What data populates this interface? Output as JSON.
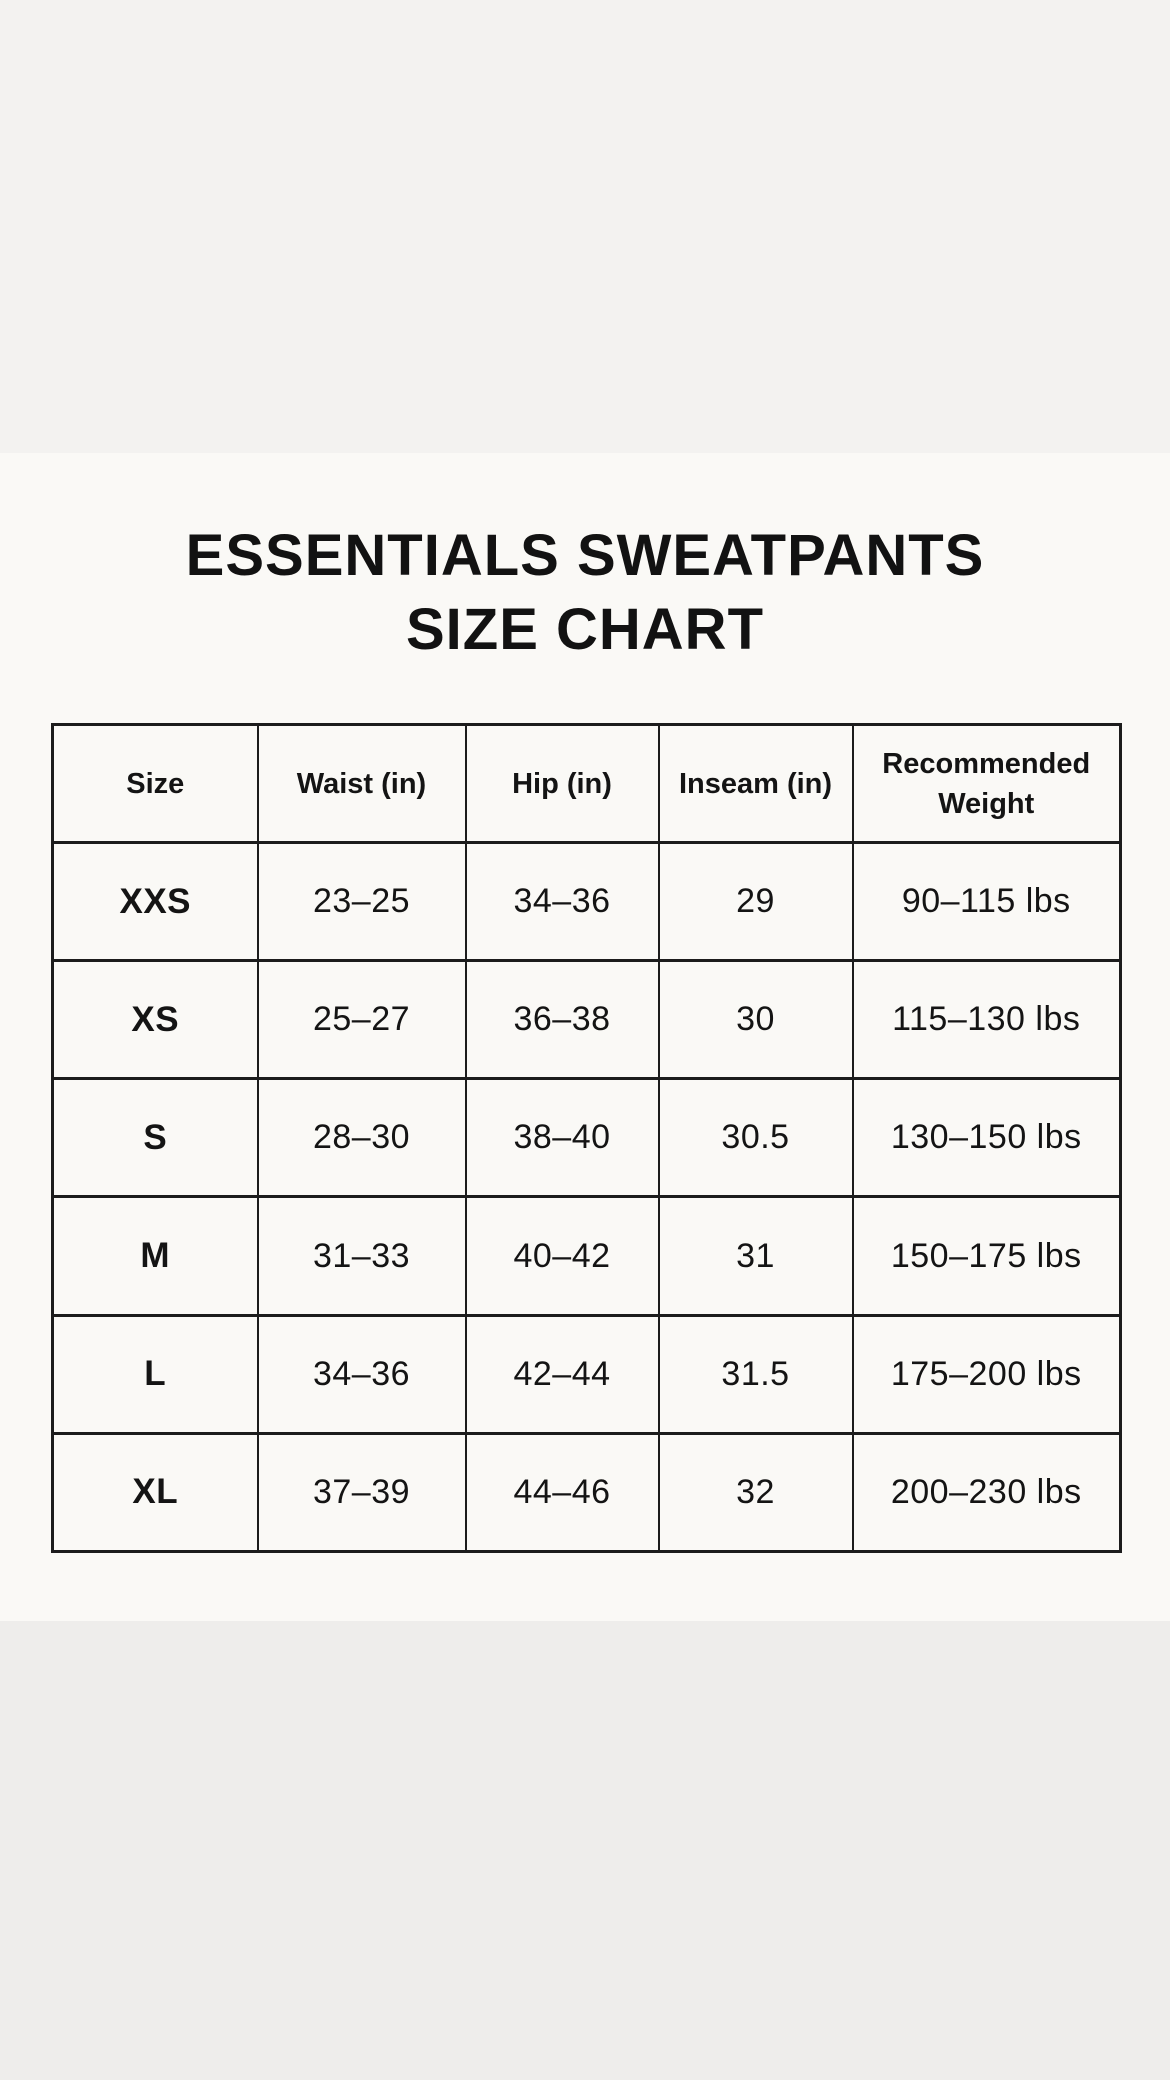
{
  "title": {
    "line1": "ESSENTIALS SWEATPANTS",
    "line2": "SIZE CHART"
  },
  "table": {
    "headers": [
      "Size",
      "Waist (in)",
      "Hip (in)",
      "Inseam (in)",
      "Recommended Weight"
    ],
    "column_keys": [
      "size",
      "waist",
      "hip",
      "inseam",
      "weight"
    ],
    "rows": [
      [
        "XXS",
        "23–25",
        "34–36",
        "29",
        "90–115 lbs"
      ],
      [
        "XS",
        "25–27",
        "36–38",
        "30",
        "115–130 lbs"
      ],
      [
        "S",
        "28–30",
        "38–40",
        "30.5",
        "130–150 lbs"
      ],
      [
        "M",
        "31–33",
        "40–42",
        "31",
        "150–175 lbs"
      ],
      [
        "L",
        "34–36",
        "42–44",
        "31.5",
        "175–200 lbs"
      ],
      [
        "XL",
        "37–39",
        "44–46",
        "32",
        "200–230 lbs"
      ]
    ]
  },
  "colors": {
    "page_bg": "#faf9f6",
    "top_band": "#f3f2f0",
    "bottom_band": "#eeedeb",
    "border": "#1c1c1c",
    "text": "#141414"
  }
}
